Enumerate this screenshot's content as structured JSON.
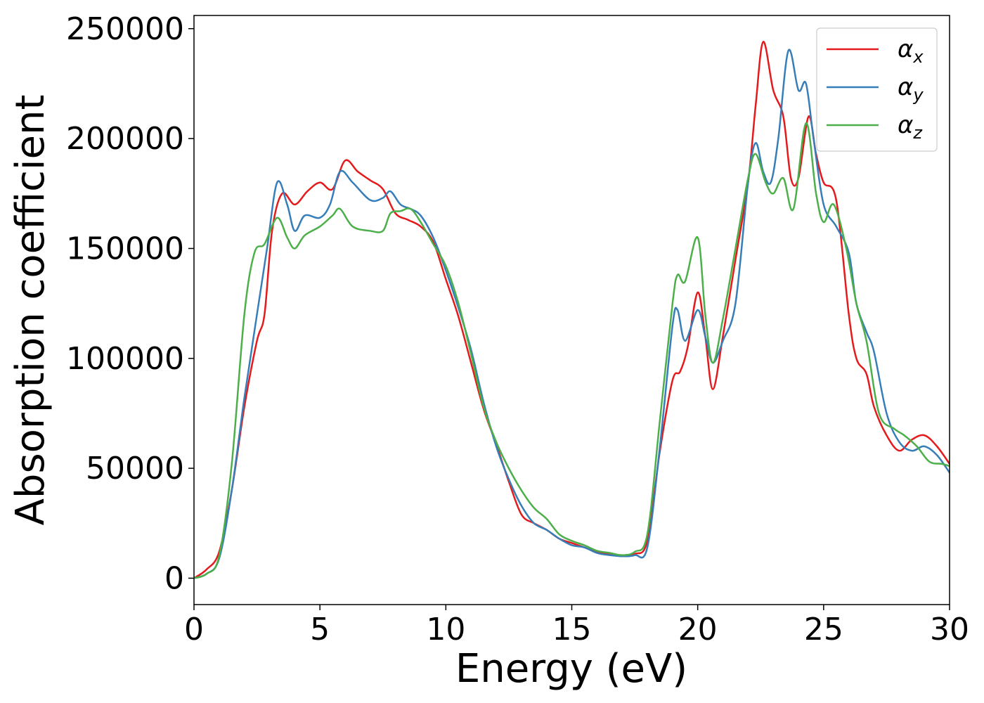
{
  "chart_data": {
    "type": "line",
    "xlabel": "Energy (eV)",
    "ylabel": "Absorption coefficient",
    "xlim": [
      0,
      30
    ],
    "ylim": [
      -12000,
      256000
    ],
    "xticks": [
      0,
      5,
      10,
      15,
      20,
      25,
      30
    ],
    "yticks": [
      0,
      50000,
      100000,
      150000,
      200000,
      250000
    ],
    "xtick_labels": [
      "0",
      "5",
      "10",
      "15",
      "20",
      "25",
      "30"
    ],
    "ytick_labels": [
      "0",
      "50000",
      "100000",
      "150000",
      "200000",
      "250000"
    ],
    "grid": false,
    "legend_position": "top-right",
    "series": [
      {
        "name": "αx",
        "name_base": "α",
        "name_sub": "x",
        "color": "#e41a1c",
        "points": [
          [
            0,
            0
          ],
          [
            0.5,
            4000
          ],
          [
            1,
            12000
          ],
          [
            1.5,
            40000
          ],
          [
            2,
            78000
          ],
          [
            2.5,
            108000
          ],
          [
            2.8,
            120000
          ],
          [
            3.1,
            158000
          ],
          [
            3.5,
            175000
          ],
          [
            4,
            170000
          ],
          [
            4.5,
            176000
          ],
          [
            5,
            180000
          ],
          [
            5.5,
            177000
          ],
          [
            6,
            190000
          ],
          [
            6.5,
            185000
          ],
          [
            7,
            181000
          ],
          [
            7.5,
            177000
          ],
          [
            8,
            166000
          ],
          [
            8.5,
            163000
          ],
          [
            9,
            160000
          ],
          [
            9.5,
            153000
          ],
          [
            10,
            136000
          ],
          [
            10.5,
            119000
          ],
          [
            11,
            98000
          ],
          [
            11.5,
            77000
          ],
          [
            12,
            61000
          ],
          [
            12.5,
            44000
          ],
          [
            13,
            29000
          ],
          [
            13.5,
            25000
          ],
          [
            14,
            22000
          ],
          [
            14.5,
            18000
          ],
          [
            15,
            16000
          ],
          [
            15.5,
            14000
          ],
          [
            16,
            12000
          ],
          [
            16.5,
            11000
          ],
          [
            17,
            10000
          ],
          [
            17.5,
            11000
          ],
          [
            18,
            17000
          ],
          [
            18.5,
            58000
          ],
          [
            19,
            90000
          ],
          [
            19.3,
            94000
          ],
          [
            19.6,
            105000
          ],
          [
            20,
            130000
          ],
          [
            20.3,
            110000
          ],
          [
            20.6,
            86000
          ],
          [
            21,
            110000
          ],
          [
            21.5,
            145000
          ],
          [
            22,
            180000
          ],
          [
            22.3,
            215000
          ],
          [
            22.6,
            244000
          ],
          [
            23,
            222000
          ],
          [
            23.4,
            210000
          ],
          [
            23.7,
            182000
          ],
          [
            24,
            182000
          ],
          [
            24.4,
            210000
          ],
          [
            24.7,
            193000
          ],
          [
            25,
            180000
          ],
          [
            25.5,
            172000
          ],
          [
            26,
            120000
          ],
          [
            26.3,
            100000
          ],
          [
            26.7,
            93000
          ],
          [
            27,
            78000
          ],
          [
            27.5,
            65000
          ],
          [
            28,
            58000
          ],
          [
            28.5,
            63000
          ],
          [
            29,
            65000
          ],
          [
            29.5,
            60000
          ],
          [
            30,
            52000
          ]
        ]
      },
      {
        "name": "αy",
        "name_base": "α",
        "name_sub": "y",
        "color": "#377eb8",
        "points": [
          [
            0,
            0
          ],
          [
            0.5,
            2000
          ],
          [
            1,
            9000
          ],
          [
            1.5,
            40000
          ],
          [
            2,
            82000
          ],
          [
            2.5,
            120000
          ],
          [
            2.9,
            150000
          ],
          [
            3.3,
            180000
          ],
          [
            3.7,
            170000
          ],
          [
            4,
            158000
          ],
          [
            4.4,
            165000
          ],
          [
            5,
            164000
          ],
          [
            5.4,
            170000
          ],
          [
            5.8,
            185000
          ],
          [
            6.3,
            180000
          ],
          [
            7,
            172000
          ],
          [
            7.5,
            173000
          ],
          [
            7.8,
            176000
          ],
          [
            8.2,
            170000
          ],
          [
            8.6,
            168000
          ],
          [
            9,
            165000
          ],
          [
            9.5,
            155000
          ],
          [
            10,
            140000
          ],
          [
            10.5,
            123000
          ],
          [
            11,
            104000
          ],
          [
            11.5,
            80000
          ],
          [
            12,
            60000
          ],
          [
            12.5,
            45000
          ],
          [
            13,
            33000
          ],
          [
            13.5,
            25000
          ],
          [
            14,
            22000
          ],
          [
            14.5,
            18000
          ],
          [
            15,
            15000
          ],
          [
            15.5,
            14000
          ],
          [
            16,
            11500
          ],
          [
            16.5,
            10500
          ],
          [
            17,
            10000
          ],
          [
            17.5,
            10500
          ],
          [
            18,
            14000
          ],
          [
            18.5,
            60000
          ],
          [
            19,
            115000
          ],
          [
            19.2,
            122000
          ],
          [
            19.5,
            108000
          ],
          [
            20,
            122000
          ],
          [
            20.3,
            110000
          ],
          [
            20.6,
            98000
          ],
          [
            21,
            108000
          ],
          [
            21.5,
            125000
          ],
          [
            22,
            180000
          ],
          [
            22.3,
            198000
          ],
          [
            22.6,
            185000
          ],
          [
            22.9,
            180000
          ],
          [
            23.2,
            200000
          ],
          [
            23.6,
            240000
          ],
          [
            24,
            222000
          ],
          [
            24.3,
            225000
          ],
          [
            24.6,
            200000
          ],
          [
            25,
            170000
          ],
          [
            25.5,
            160000
          ],
          [
            26,
            148000
          ],
          [
            26.3,
            125000
          ],
          [
            26.7,
            112000
          ],
          [
            27,
            103000
          ],
          [
            27.5,
            75000
          ],
          [
            28,
            62000
          ],
          [
            28.5,
            58000
          ],
          [
            29,
            60000
          ],
          [
            29.5,
            56000
          ],
          [
            30,
            48000
          ]
        ]
      },
      {
        "name": "αz",
        "name_base": "α",
        "name_sub": "z",
        "color": "#4daf4a",
        "points": [
          [
            0,
            0
          ],
          [
            0.5,
            2000
          ],
          [
            1,
            10000
          ],
          [
            1.5,
            52000
          ],
          [
            2,
            120000
          ],
          [
            2.4,
            148000
          ],
          [
            2.8,
            152000
          ],
          [
            3.3,
            164000
          ],
          [
            3.7,
            155000
          ],
          [
            4,
            150000
          ],
          [
            4.4,
            156000
          ],
          [
            5,
            160000
          ],
          [
            5.5,
            165000
          ],
          [
            5.8,
            168000
          ],
          [
            6.3,
            160000
          ],
          [
            7,
            158000
          ],
          [
            7.5,
            158000
          ],
          [
            7.8,
            166000
          ],
          [
            8.2,
            167000
          ],
          [
            8.6,
            168000
          ],
          [
            9,
            162000
          ],
          [
            9.5,
            152000
          ],
          [
            10,
            142000
          ],
          [
            10.5,
            125000
          ],
          [
            11,
            102000
          ],
          [
            11.5,
            78000
          ],
          [
            12,
            62000
          ],
          [
            12.5,
            50000
          ],
          [
            13,
            40000
          ],
          [
            13.5,
            32000
          ],
          [
            14,
            27000
          ],
          [
            14.5,
            20000
          ],
          [
            15,
            17000
          ],
          [
            15.5,
            15000
          ],
          [
            16,
            12500
          ],
          [
            16.5,
            11500
          ],
          [
            17,
            10500
          ],
          [
            17.5,
            12000
          ],
          [
            18,
            20000
          ],
          [
            18.5,
            72000
          ],
          [
            19,
            125000
          ],
          [
            19.2,
            138000
          ],
          [
            19.5,
            135000
          ],
          [
            20,
            155000
          ],
          [
            20.3,
            120000
          ],
          [
            20.6,
            98000
          ],
          [
            21,
            118000
          ],
          [
            21.5,
            150000
          ],
          [
            22,
            182000
          ],
          [
            22.3,
            193000
          ],
          [
            22.7,
            180000
          ],
          [
            23,
            175000
          ],
          [
            23.4,
            182000
          ],
          [
            23.8,
            168000
          ],
          [
            24.3,
            207000
          ],
          [
            24.7,
            175000
          ],
          [
            25,
            162000
          ],
          [
            25.4,
            170000
          ],
          [
            25.9,
            150000
          ],
          [
            26.3,
            125000
          ],
          [
            26.7,
            108000
          ],
          [
            27.2,
            75000
          ],
          [
            27.8,
            68000
          ],
          [
            28.2,
            65000
          ],
          [
            28.7,
            60000
          ],
          [
            29.2,
            53000
          ],
          [
            29.7,
            52000
          ],
          [
            30,
            51000
          ]
        ]
      }
    ]
  }
}
